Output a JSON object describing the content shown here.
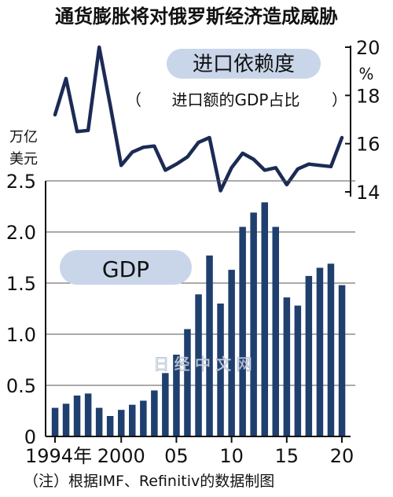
{
  "chart_data": [
    {
      "type": "line",
      "title": "通货膨胀将对俄罗斯经济造成威胁",
      "label": "进口依赖度",
      "sublabel_open": "（",
      "sublabel": "进口额的GDP占比",
      "sublabel_close": "）",
      "y_unit": "%",
      "ylim": [
        14,
        20
      ],
      "y_ticks": [
        "14",
        "16",
        "18",
        "20"
      ],
      "x": [
        1994,
        1995,
        1996,
        1997,
        1998,
        1999,
        2000,
        2001,
        2002,
        2003,
        2004,
        2005,
        2006,
        2007,
        2008,
        2009,
        2010,
        2011,
        2012,
        2013,
        2014,
        2015,
        2016,
        2017,
        2018,
        2019,
        2020
      ],
      "values": [
        17.2,
        18.7,
        16.5,
        16.55,
        20.0,
        17.6,
        15.1,
        15.65,
        15.85,
        15.9,
        14.9,
        15.15,
        15.45,
        16.05,
        16.25,
        14.05,
        15.0,
        15.6,
        15.35,
        14.9,
        15.0,
        14.3,
        14.95,
        15.15,
        15.1,
        15.05,
        16.25
      ],
      "color": "#1c2b55"
    },
    {
      "type": "bar",
      "label": "GDP",
      "y_unit": "万亿\n美元",
      "ylim": [
        0,
        2.5
      ],
      "y_ticks": [
        "0",
        "0.5",
        "1.0",
        "1.5",
        "2.0",
        "2.5"
      ],
      "x_ticks": [
        "1994年",
        "2000",
        "05",
        "10",
        "15",
        "20"
      ],
      "x_tick_years": [
        1994,
        2000,
        2005,
        2010,
        2015,
        2020
      ],
      "x": [
        1994,
        1995,
        1996,
        1997,
        1998,
        1999,
        2000,
        2001,
        2002,
        2003,
        2004,
        2005,
        2006,
        2007,
        2008,
        2009,
        2010,
        2011,
        2012,
        2013,
        2014,
        2015,
        2016,
        2017,
        2018,
        2019,
        2020
      ],
      "values": [
        0.28,
        0.32,
        0.4,
        0.42,
        0.28,
        0.2,
        0.26,
        0.31,
        0.35,
        0.45,
        0.62,
        0.8,
        1.05,
        1.39,
        1.77,
        1.3,
        1.63,
        2.05,
        2.19,
        2.29,
        2.05,
        1.36,
        1.28,
        1.57,
        1.65,
        1.69,
        1.48
      ],
      "color": "#1f3f6e"
    }
  ],
  "watermark": "日 经 中 文 网",
  "source": "（注）根据IMF、Refinitiv的数据制图"
}
